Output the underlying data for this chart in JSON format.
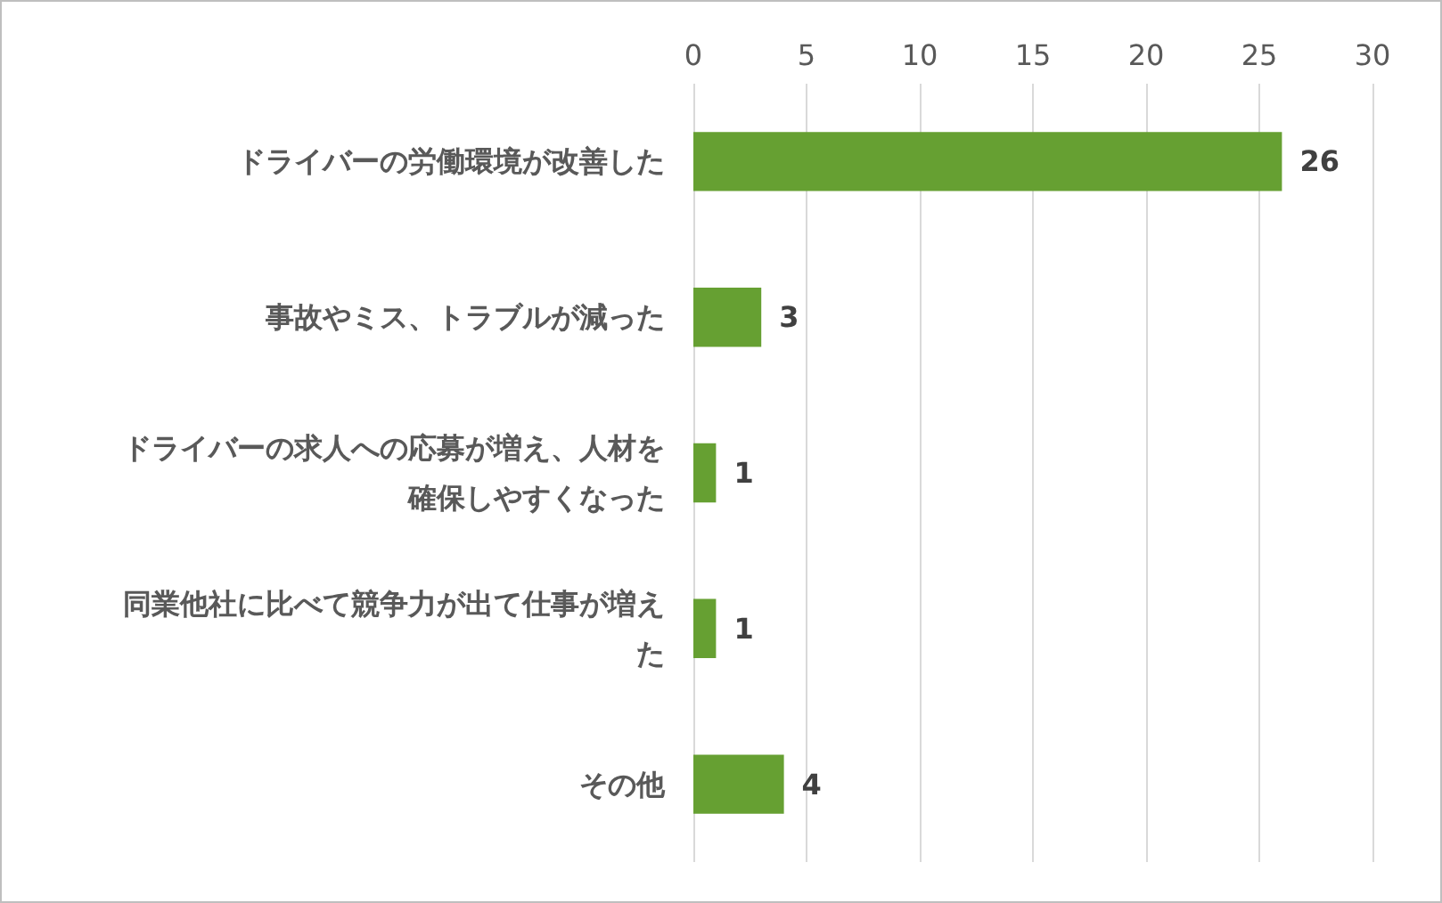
{
  "chart_data": {
    "type": "bar",
    "orientation": "horizontal",
    "categories": [
      "ドライバーの労働環境が改善した",
      "事故やミス、トラブルが減った",
      "ドライバーの求人への応募が増え、人材を確保しやすくなった",
      "同業他社に比べて競争力が出て仕事が増えた",
      "その他"
    ],
    "values": [
      26,
      3,
      1,
      1,
      4
    ],
    "color": "#66a032",
    "xlim": [
      0,
      30
    ],
    "xticks": [
      0,
      5,
      10,
      15,
      20,
      25,
      30
    ],
    "grid": "x",
    "data_labels": true
  }
}
